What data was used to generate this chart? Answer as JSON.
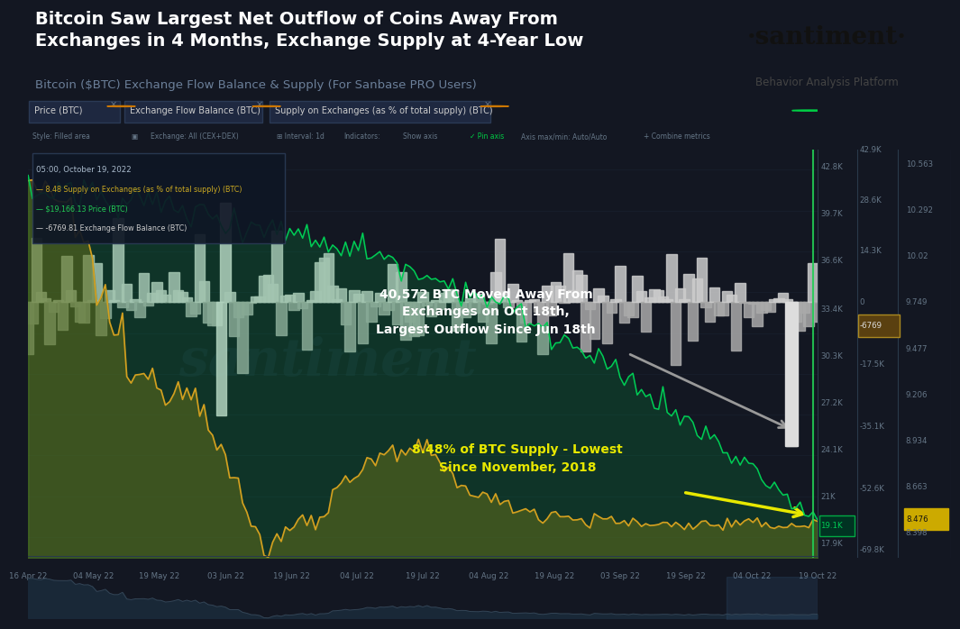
{
  "title_line1": "Bitcoin Saw Largest Net Outflow of Coins Away From",
  "title_line2": "Exchanges in 4 Months, Exchange Supply at 4-Year Low",
  "subtitle": "Bitcoin ($BTC) Exchange Flow Balance & Supply (For Sanbase PRO Users)",
  "santiment_label": "·santiment·",
  "santiment_sub": "Behavior Analysis Platform",
  "bg_color": "#131722",
  "chart_bg": "#131722",
  "title_color": "#ffffff",
  "subtitle_color": "#6b7f99",
  "x_labels": [
    "16 Apr 22",
    "04 May 22",
    "19 May 22",
    "03 Jun 22",
    "19 Jun 22",
    "04 Jul 22",
    "19 Jul 22",
    "04 Aug 22",
    "19 Aug 22",
    "03 Sep 22",
    "19 Sep 22",
    "04 Oct 22",
    "19 Oct 22"
  ],
  "annotation1": "40,572 BTC Moved Away From\nExchanges on Oct 18th,\nLargest Outflow Since Jun 18th",
  "annotation2": "8.48% of BTC Supply - Lowest\nSince November, 2018",
  "annotation1_color": "#ffffff",
  "annotation2_color": "#e8e800",
  "right_axis1_labels": [
    "42.8K",
    "39.7K",
    "36.6K",
    "33.4K",
    "30.3K",
    "27.2K",
    "24.1K",
    "21K",
    "17.9K"
  ],
  "right_axis1_values": [
    42800,
    39700,
    36600,
    33400,
    30300,
    27200,
    24100,
    21000,
    17900
  ],
  "right_axis2_labels": [
    "42.9K",
    "28.6K",
    "14.3K",
    "0",
    "-17.5K",
    "-35.1K",
    "-52.6K",
    "-69.8K"
  ],
  "right_axis2_values": [
    42900,
    28600,
    14300,
    0,
    -17500,
    -35100,
    -52600,
    -69800
  ],
  "right_axis3_labels": [
    "10.563",
    "10.292",
    "10.02",
    "9.749",
    "9.477",
    "9.206",
    "8.934",
    "8.663",
    "8.398"
  ],
  "right_axis3_values": [
    10.563,
    10.292,
    10.02,
    9.749,
    9.477,
    9.206,
    8.934,
    8.663,
    8.398
  ],
  "tooltip_date": "05:00, October 19, 2022",
  "tooltip_supply": "8.48 Supply on Exchanges (as % of total supply) (BTC)",
  "tooltip_price": "$19,166.13 Price (BTC)",
  "tooltip_flow": "-6769.81 Exchange Flow Balance (BTC)",
  "price_min": 17000,
  "price_max": 44000,
  "supply_min": 8.25,
  "supply_max": 10.65,
  "flow_min": -72000,
  "flow_max": 43000,
  "n_points": 185
}
